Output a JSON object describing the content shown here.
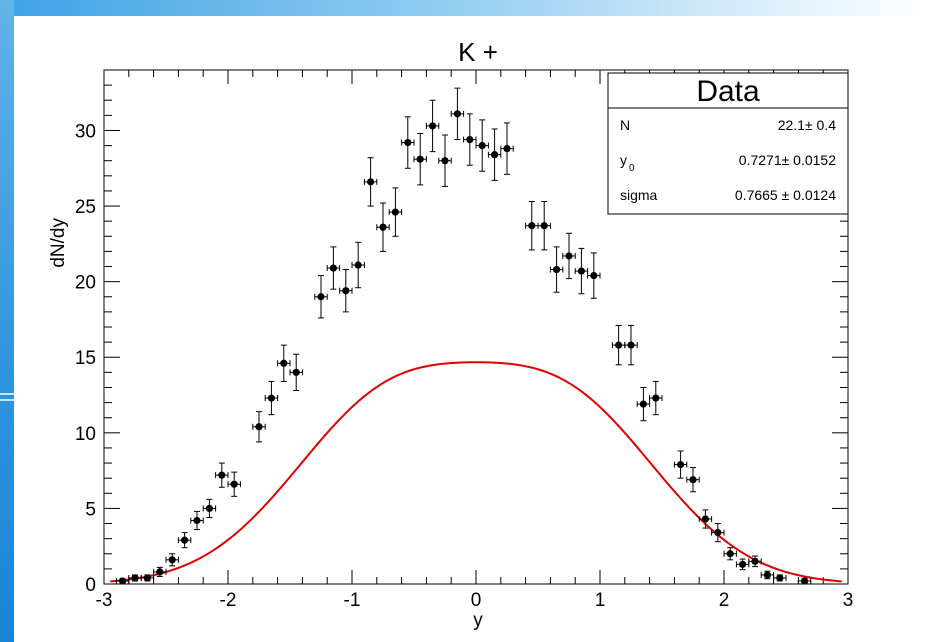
{
  "chart_data": {
    "type": "scatter",
    "title": "K +",
    "xlabel": "y",
    "ylabel": "dN/dy",
    "xlim": [
      -3,
      3
    ],
    "ylim": [
      0,
      34
    ],
    "x_ticks": [
      "-3",
      "-2",
      "-1",
      "0",
      "1",
      "2",
      "3"
    ],
    "y_ticks": [
      "0",
      "5",
      "10",
      "15",
      "20",
      "25",
      "30"
    ],
    "grid": false,
    "series": [
      {
        "kind": "data-points-with-errors",
        "color": "#000000",
        "x_err": 0.05,
        "points": [
          {
            "x": -2.85,
            "y": 0.2,
            "err": 0.15
          },
          {
            "x": -2.75,
            "y": 0.4,
            "err": 0.2
          },
          {
            "x": -2.65,
            "y": 0.4,
            "err": 0.2
          },
          {
            "x": -2.55,
            "y": 0.8,
            "err": 0.3
          },
          {
            "x": -2.45,
            "y": 1.6,
            "err": 0.4
          },
          {
            "x": -2.35,
            "y": 2.9,
            "err": 0.5
          },
          {
            "x": -2.25,
            "y": 4.2,
            "err": 0.6
          },
          {
            "x": -2.15,
            "y": 5.0,
            "err": 0.6
          },
          {
            "x": -2.05,
            "y": 7.2,
            "err": 0.8
          },
          {
            "x": -1.95,
            "y": 6.6,
            "err": 0.8
          },
          {
            "x": -1.75,
            "y": 10.4,
            "err": 1.0
          },
          {
            "x": -1.65,
            "y": 12.3,
            "err": 1.1
          },
          {
            "x": -1.55,
            "y": 14.6,
            "err": 1.2
          },
          {
            "x": -1.45,
            "y": 14.0,
            "err": 1.2
          },
          {
            "x": -1.25,
            "y": 19.0,
            "err": 1.4
          },
          {
            "x": -1.15,
            "y": 20.9,
            "err": 1.4
          },
          {
            "x": -1.05,
            "y": 19.4,
            "err": 1.4
          },
          {
            "x": -0.95,
            "y": 21.1,
            "err": 1.5
          },
          {
            "x": -0.85,
            "y": 26.6,
            "err": 1.6
          },
          {
            "x": -0.75,
            "y": 23.6,
            "err": 1.6
          },
          {
            "x": -0.65,
            "y": 24.6,
            "err": 1.6
          },
          {
            "x": -0.55,
            "y": 29.2,
            "err": 1.7
          },
          {
            "x": -0.45,
            "y": 28.1,
            "err": 1.7
          },
          {
            "x": -0.35,
            "y": 30.3,
            "err": 1.7
          },
          {
            "x": -0.25,
            "y": 28.0,
            "err": 1.7
          },
          {
            "x": -0.15,
            "y": 31.1,
            "err": 1.7
          },
          {
            "x": -0.05,
            "y": 29.4,
            "err": 1.7
          },
          {
            "x": 0.05,
            "y": 29.0,
            "err": 1.7
          },
          {
            "x": 0.15,
            "y": 28.4,
            "err": 1.7
          },
          {
            "x": 0.25,
            "y": 28.8,
            "err": 1.7
          },
          {
            "x": 0.45,
            "y": 23.7,
            "err": 1.6
          },
          {
            "x": 0.55,
            "y": 23.7,
            "err": 1.6
          },
          {
            "x": 0.65,
            "y": 20.8,
            "err": 1.5
          },
          {
            "x": 0.75,
            "y": 21.7,
            "err": 1.5
          },
          {
            "x": 0.85,
            "y": 20.7,
            "err": 1.5
          },
          {
            "x": 0.95,
            "y": 20.4,
            "err": 1.5
          },
          {
            "x": 1.15,
            "y": 15.8,
            "err": 1.3
          },
          {
            "x": 1.25,
            "y": 15.8,
            "err": 1.3
          },
          {
            "x": 1.35,
            "y": 11.9,
            "err": 1.1
          },
          {
            "x": 1.45,
            "y": 12.3,
            "err": 1.1
          },
          {
            "x": 1.65,
            "y": 7.9,
            "err": 0.9
          },
          {
            "x": 1.75,
            "y": 6.9,
            "err": 0.8
          },
          {
            "x": 1.85,
            "y": 4.3,
            "err": 0.6
          },
          {
            "x": 1.95,
            "y": 3.4,
            "err": 0.6
          },
          {
            "x": 2.05,
            "y": 2.0,
            "err": 0.4
          },
          {
            "x": 2.15,
            "y": 1.3,
            "err": 0.35
          },
          {
            "x": 2.25,
            "y": 1.5,
            "err": 0.35
          },
          {
            "x": 2.35,
            "y": 0.6,
            "err": 0.25
          },
          {
            "x": 2.45,
            "y": 0.4,
            "err": 0.2
          },
          {
            "x": 2.65,
            "y": 0.2,
            "err": 0.15
          }
        ]
      },
      {
        "kind": "fit-curve",
        "color": "#e00000",
        "N": 22.1,
        "y0": 0.7271,
        "sigma": 0.7665
      }
    ],
    "stats_box": {
      "title": "Data",
      "rows": [
        {
          "label": "N",
          "sub": "",
          "value": "22.1± 0.4"
        },
        {
          "label": "y",
          "sub": "0",
          "value": "0.7271± 0.0152"
        },
        {
          "label": "sigma",
          "sub": "",
          "value": "0.7665 ± 0.0124"
        }
      ]
    }
  }
}
